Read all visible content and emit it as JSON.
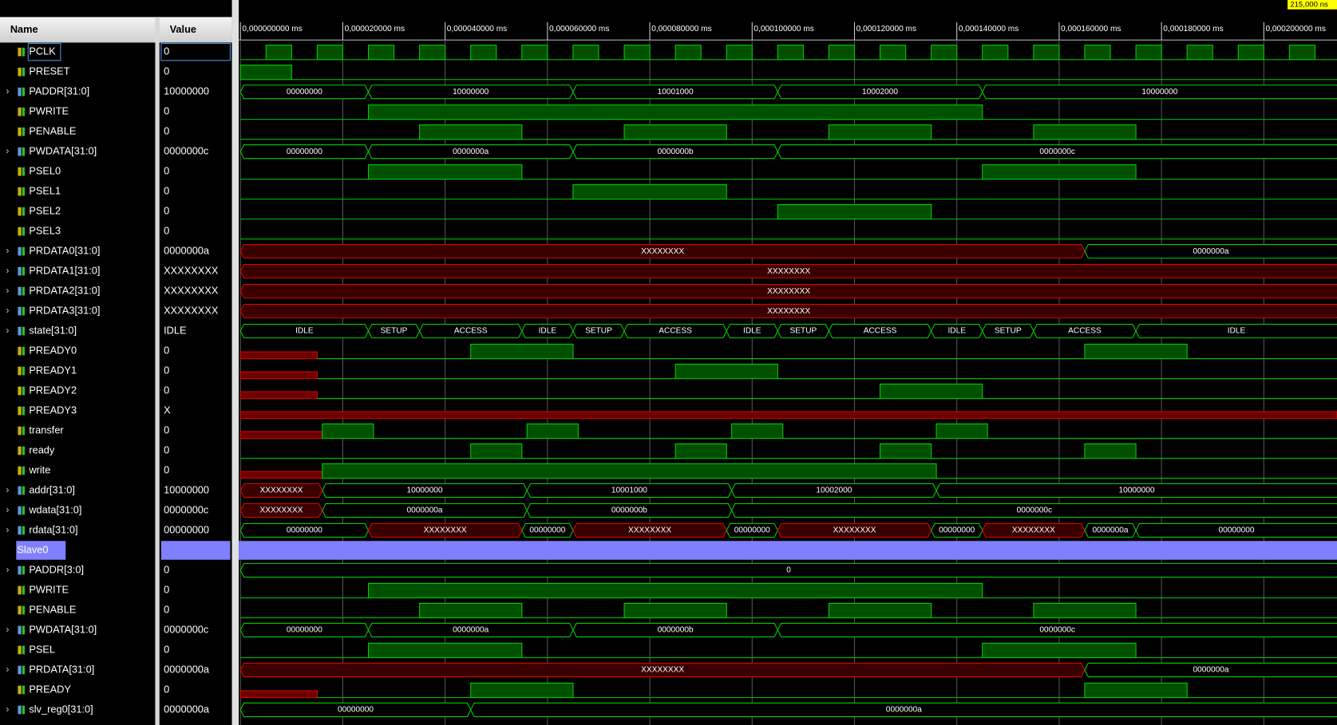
{
  "header": {
    "name": "Name",
    "value": "Value"
  },
  "timeline": {
    "xlim": [
      0,
      214.3
    ],
    "cursor": "215,000 ns",
    "grid": true,
    "ticks": [
      {
        "value": 0,
        "label": "0,000000000 ms"
      },
      {
        "value": 20,
        "label": "0,000020000 ms"
      },
      {
        "value": 40,
        "label": "0,000040000 ms"
      },
      {
        "value": 60,
        "label": "0,000060000 ms"
      },
      {
        "value": 80,
        "label": "0,000080000 ms"
      },
      {
        "value": 100,
        "label": "0,000100000 ms"
      },
      {
        "value": 120,
        "label": "0,000120000 ms"
      },
      {
        "value": 140,
        "label": "0,000140000 ms"
      },
      {
        "value": 160,
        "label": "0,000160000 ms"
      },
      {
        "value": 180,
        "label": "0,000180000 ms"
      },
      {
        "value": 200,
        "label": "0,000200000 ms"
      }
    ]
  },
  "signals": [
    {
      "name": "PCLK",
      "value": "0",
      "selected": true,
      "wave": [
        [
          0,
          0
        ],
        [
          5,
          1
        ],
        [
          10,
          0
        ],
        [
          15,
          1
        ],
        [
          20,
          0
        ],
        [
          25,
          1
        ],
        [
          30,
          0
        ],
        [
          35,
          1
        ],
        [
          40,
          0
        ],
        [
          45,
          1
        ],
        [
          50,
          0
        ],
        [
          55,
          1
        ],
        [
          60,
          0
        ],
        [
          65,
          1
        ],
        [
          70,
          0
        ],
        [
          75,
          1
        ],
        [
          80,
          0
        ],
        [
          85,
          1
        ],
        [
          90,
          0
        ],
        [
          95,
          1
        ],
        [
          100,
          0
        ],
        [
          105,
          1
        ],
        [
          110,
          0
        ],
        [
          115,
          1
        ],
        [
          120,
          0
        ],
        [
          125,
          1
        ],
        [
          130,
          0
        ],
        [
          135,
          1
        ],
        [
          140,
          0
        ],
        [
          145,
          1
        ],
        [
          150,
          0
        ],
        [
          155,
          1
        ],
        [
          160,
          0
        ],
        [
          165,
          1
        ],
        [
          170,
          0
        ],
        [
          175,
          1
        ],
        [
          180,
          0
        ],
        [
          185,
          1
        ],
        [
          190,
          0
        ],
        [
          195,
          1
        ],
        [
          200,
          0
        ],
        [
          205,
          1
        ],
        [
          210,
          0
        ]
      ]
    },
    {
      "name": "PRESET",
      "value": "0",
      "wave": [
        [
          0,
          1
        ],
        [
          10,
          0
        ]
      ]
    },
    {
      "name": "PADDR[31:0]",
      "value": "10000000",
      "bus": true,
      "segments": [
        {
          "t": 0,
          "label": "00000000"
        },
        {
          "t": 25,
          "label": "10000000"
        },
        {
          "t": 65,
          "label": "10001000"
        },
        {
          "t": 105,
          "label": "10002000"
        },
        {
          "t": 145,
          "label": "10000000"
        }
      ]
    },
    {
      "name": "PWRITE",
      "value": "0",
      "wave": [
        [
          0,
          0
        ],
        [
          25,
          1
        ],
        [
          145,
          0
        ]
      ]
    },
    {
      "name": "PENABLE",
      "value": "0",
      "wave": [
        [
          0,
          0
        ],
        [
          35,
          1
        ],
        [
          55,
          0
        ],
        [
          75,
          1
        ],
        [
          95,
          0
        ],
        [
          115,
          1
        ],
        [
          135,
          0
        ],
        [
          155,
          1
        ],
        [
          175,
          0
        ]
      ]
    },
    {
      "name": "PWDATA[31:0]",
      "value": "0000000c",
      "bus": true,
      "segments": [
        {
          "t": 0,
          "label": "00000000"
        },
        {
          "t": 25,
          "label": "0000000a"
        },
        {
          "t": 65,
          "label": "0000000b"
        },
        {
          "t": 105,
          "label": "0000000c"
        }
      ]
    },
    {
      "name": "PSEL0",
      "value": "0",
      "wave": [
        [
          0,
          0
        ],
        [
          25,
          1
        ],
        [
          55,
          0
        ],
        [
          145,
          1
        ],
        [
          175,
          0
        ]
      ]
    },
    {
      "name": "PSEL1",
      "value": "0",
      "wave": [
        [
          0,
          0
        ],
        [
          65,
          1
        ],
        [
          95,
          0
        ]
      ]
    },
    {
      "name": "PSEL2",
      "value": "0",
      "wave": [
        [
          0,
          0
        ],
        [
          105,
          1
        ],
        [
          135,
          0
        ]
      ]
    },
    {
      "name": "PSEL3",
      "value": "0",
      "wave": [
        [
          0,
          0
        ]
      ]
    },
    {
      "name": "PRDATA0[31:0]",
      "value": "0000000a",
      "bus": true,
      "segments": [
        {
          "t": 0,
          "label": "XXXXXXXX",
          "unknown": true
        },
        {
          "t": 165,
          "label": "0000000a"
        }
      ]
    },
    {
      "name": "PRDATA1[31:0]",
      "value": "XXXXXXXX",
      "bus": true,
      "segments": [
        {
          "t": 0,
          "label": "XXXXXXXX",
          "unknown": true
        }
      ]
    },
    {
      "name": "PRDATA2[31:0]",
      "value": "XXXXXXXX",
      "bus": true,
      "segments": [
        {
          "t": 0,
          "label": "XXXXXXXX",
          "unknown": true
        }
      ]
    },
    {
      "name": "PRDATA3[31:0]",
      "value": "XXXXXXXX",
      "bus": true,
      "segments": [
        {
          "t": 0,
          "label": "XXXXXXXX",
          "unknown": true
        }
      ]
    },
    {
      "name": "state[31:0]",
      "value": "IDLE",
      "bus": true,
      "segments": [
        {
          "t": 0,
          "label": "IDLE"
        },
        {
          "t": 25,
          "label": "SETUP"
        },
        {
          "t": 35,
          "label": "ACCESS"
        },
        {
          "t": 55,
          "label": "IDLE"
        },
        {
          "t": 65,
          "label": "SETUP"
        },
        {
          "t": 75,
          "label": "ACCESS"
        },
        {
          "t": 95,
          "label": "IDLE"
        },
        {
          "t": 105,
          "label": "SETUP"
        },
        {
          "t": 115,
          "label": "ACCESS"
        },
        {
          "t": 135,
          "label": "IDLE"
        },
        {
          "t": 145,
          "label": "SETUP"
        },
        {
          "t": 155,
          "label": "ACCESS"
        },
        {
          "t": 175,
          "label": "IDLE"
        }
      ]
    },
    {
      "name": "PREADY0",
      "value": "0",
      "wave": [
        [
          0,
          "x"
        ],
        [
          15,
          0
        ],
        [
          45,
          1
        ],
        [
          65,
          0
        ],
        [
          165,
          1
        ],
        [
          185,
          0
        ]
      ]
    },
    {
      "name": "PREADY1",
      "value": "0",
      "wave": [
        [
          0,
          "x"
        ],
        [
          15,
          0
        ],
        [
          85,
          1
        ],
        [
          105,
          0
        ]
      ]
    },
    {
      "name": "PREADY2",
      "value": "0",
      "wave": [
        [
          0,
          "x"
        ],
        [
          15,
          0
        ],
        [
          125,
          1
        ],
        [
          145,
          0
        ]
      ]
    },
    {
      "name": "PREADY3",
      "value": "X",
      "wave": [
        [
          0,
          "x"
        ]
      ]
    },
    {
      "name": "transfer",
      "value": "0",
      "wave": [
        [
          0,
          "x"
        ],
        [
          16,
          1
        ],
        [
          26,
          0
        ],
        [
          56,
          1
        ],
        [
          66,
          0
        ],
        [
          96,
          1
        ],
        [
          106,
          0
        ],
        [
          136,
          1
        ],
        [
          146,
          0
        ]
      ]
    },
    {
      "name": "ready",
      "value": "0",
      "wave": [
        [
          0,
          0
        ],
        [
          45,
          1
        ],
        [
          55,
          0
        ],
        [
          85,
          1
        ],
        [
          95,
          0
        ],
        [
          125,
          1
        ],
        [
          135,
          0
        ],
        [
          165,
          1
        ],
        [
          175,
          0
        ]
      ]
    },
    {
      "name": "write",
      "value": "0",
      "wave": [
        [
          0,
          "x"
        ],
        [
          16,
          1
        ],
        [
          136,
          0
        ]
      ]
    },
    {
      "name": "addr[31:0]",
      "value": "10000000",
      "bus": true,
      "segments": [
        {
          "t": 0,
          "label": "XXXXXXXX",
          "unknown": true
        },
        {
          "t": 16,
          "label": "10000000"
        },
        {
          "t": 56,
          "label": "10001000"
        },
        {
          "t": 96,
          "label": "10002000"
        },
        {
          "t": 136,
          "label": "10000000"
        }
      ]
    },
    {
      "name": "wdata[31:0]",
      "value": "0000000c",
      "bus": true,
      "segments": [
        {
          "t": 0,
          "label": "XXXXXXXX",
          "unknown": true
        },
        {
          "t": 16,
          "label": "0000000a"
        },
        {
          "t": 56,
          "label": "0000000b"
        },
        {
          "t": 96,
          "label": "0000000c"
        }
      ]
    },
    {
      "name": "rdata[31:0]",
      "value": "00000000",
      "bus": true,
      "segments": [
        {
          "t": 0,
          "label": "00000000"
        },
        {
          "t": 25,
          "label": "XXXXXXXX",
          "unknown": true
        },
        {
          "t": 55,
          "label": "00000000"
        },
        {
          "t": 65,
          "label": "XXXXXXXX",
          "unknown": true
        },
        {
          "t": 95,
          "label": "00000000"
        },
        {
          "t": 105,
          "label": "XXXXXXXX",
          "unknown": true
        },
        {
          "t": 135,
          "label": "00000000"
        },
        {
          "t": 145,
          "label": "XXXXXXXX",
          "unknown": true
        },
        {
          "t": 165,
          "label": "0000000a"
        },
        {
          "t": 175,
          "label": "00000000"
        }
      ]
    },
    {
      "name": "Slave0",
      "divider": true
    },
    {
      "name": "PADDR[3:0]",
      "value": "0",
      "bus": true,
      "segments": [
        {
          "t": 0,
          "label": "0"
        }
      ]
    },
    {
      "name": "PWRITE",
      "value": "0",
      "wave": [
        [
          0,
          0
        ],
        [
          25,
          1
        ],
        [
          145,
          0
        ]
      ]
    },
    {
      "name": "PENABLE",
      "value": "0",
      "wave": [
        [
          0,
          0
        ],
        [
          35,
          1
        ],
        [
          55,
          0
        ],
        [
          75,
          1
        ],
        [
          95,
          0
        ],
        [
          115,
          1
        ],
        [
          135,
          0
        ],
        [
          155,
          1
        ],
        [
          175,
          0
        ]
      ]
    },
    {
      "name": "PWDATA[31:0]",
      "value": "0000000c",
      "bus": true,
      "segments": [
        {
          "t": 0,
          "label": "00000000"
        },
        {
          "t": 25,
          "label": "0000000a"
        },
        {
          "t": 65,
          "label": "0000000b"
        },
        {
          "t": 105,
          "label": "0000000c"
        }
      ]
    },
    {
      "name": "PSEL",
      "value": "0",
      "wave": [
        [
          0,
          0
        ],
        [
          25,
          1
        ],
        [
          55,
          0
        ],
        [
          145,
          1
        ],
        [
          175,
          0
        ]
      ]
    },
    {
      "name": "PRDATA[31:0]",
      "value": "0000000a",
      "bus": true,
      "segments": [
        {
          "t": 0,
          "label": "XXXXXXXX",
          "unknown": true
        },
        {
          "t": 165,
          "label": "0000000a"
        }
      ]
    },
    {
      "name": "PREADY",
      "value": "0",
      "wave": [
        [
          0,
          "x"
        ],
        [
          15,
          0
        ],
        [
          45,
          1
        ],
        [
          65,
          0
        ],
        [
          165,
          1
        ],
        [
          185,
          0
        ]
      ]
    },
    {
      "name": "slv_reg0[31:0]",
      "value": "0000000a",
      "bus": true,
      "segments": [
        {
          "t": 0,
          "label": "00000000"
        },
        {
          "t": 45,
          "label": "0000000a"
        }
      ]
    }
  ]
}
